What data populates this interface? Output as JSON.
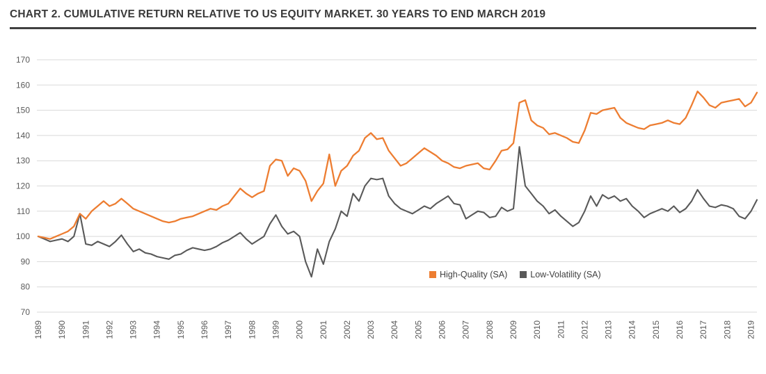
{
  "title": "CHART 2. CUMULATIVE RETURN RELATIVE TO US EQUITY MARKET. 30 YEARS TO END MARCH 2019",
  "colors": {
    "accent_orange": "#ED7D31",
    "line_gray": "#595959",
    "grid": "#D9D9D9",
    "axis_text": "#595959",
    "title_text": "#3A3A3A",
    "title_rule": "#404040"
  },
  "chart_data": {
    "type": "line",
    "title": "CHART 2. CUMULATIVE RETURN RELATIVE TO US EQUITY MARKET. 30 YEARS TO END MARCH 2019",
    "xlabel": "",
    "ylabel": "",
    "ylim": [
      70,
      170
    ],
    "y_ticks": [
      70,
      80,
      90,
      100,
      110,
      120,
      130,
      140,
      150,
      160,
      170
    ],
    "x_tick_labels": [
      "1989",
      "1990",
      "1991",
      "1992",
      "1993",
      "1994",
      "1995",
      "1996",
      "1997",
      "1998",
      "1999",
      "2000",
      "2001",
      "2002",
      "2003",
      "2004",
      "2005",
      "2006",
      "2007",
      "2008",
      "2009",
      "2010",
      "2011",
      "2012",
      "2013",
      "2014",
      "2015",
      "2016",
      "2017",
      "2018",
      "2019"
    ],
    "points_per_year": 4,
    "grid": "horizontal",
    "legend_position": "inside-bottom-center",
    "series": [
      {
        "name": "High-Quality (SA)",
        "color": "#ED7D31",
        "values": [
          100,
          99.5,
          99,
          100,
          101,
          102,
          104,
          109,
          107,
          110,
          112,
          114,
          112,
          113,
          115,
          113,
          111,
          110,
          109,
          108,
          107,
          106,
          105.5,
          106,
          107,
          107.5,
          108,
          109,
          110,
          111,
          110.5,
          112,
          113,
          116,
          119,
          117,
          115.5,
          117,
          118,
          128,
          130.5,
          130,
          124,
          127,
          126,
          122,
          114,
          118,
          121,
          132.5,
          120,
          126,
          128,
          132,
          134,
          139,
          141,
          138.5,
          139,
          134,
          131,
          128,
          129,
          131,
          133,
          135,
          133.5,
          132,
          130,
          129,
          127.5,
          127,
          128,
          128.5,
          129,
          127,
          126.5,
          130,
          134,
          134.5,
          137,
          153,
          154,
          146,
          144,
          143,
          140.5,
          141,
          140,
          139,
          137.5,
          137,
          142,
          149,
          148.5,
          150,
          150.5,
          151,
          147,
          145,
          144,
          143,
          142.5,
          144,
          144.5,
          145,
          146,
          145,
          144.5,
          147,
          152,
          157.5,
          155,
          152,
          151,
          153,
          153.5,
          154,
          154.5,
          151.5,
          153,
          157
        ]
      },
      {
        "name": "Low-Volatility (SA)",
        "color": "#595959",
        "values": [
          100,
          99,
          98,
          98.5,
          99,
          98,
          100,
          109,
          97,
          96.5,
          98,
          97,
          96,
          98,
          100.5,
          97,
          94,
          95,
          93.5,
          93,
          92,
          91.5,
          91,
          92.5,
          93,
          94.5,
          95.5,
          95,
          94.5,
          95,
          96,
          97.5,
          98.5,
          100,
          101.5,
          99,
          97,
          98.5,
          100,
          105,
          108.5,
          104,
          101,
          102,
          100,
          90,
          84,
          95,
          89,
          98,
          103,
          110,
          108,
          117,
          114,
          120,
          123,
          122.5,
          123,
          116,
          113,
          111,
          110,
          109,
          110.5,
          112,
          111,
          113,
          114.5,
          116,
          113,
          112.5,
          107,
          108.5,
          110,
          109.5,
          107.5,
          108,
          111.5,
          110,
          111,
          135.5,
          120,
          117,
          114,
          112,
          109,
          110.5,
          108,
          106,
          104,
          105.5,
          110,
          116,
          112,
          116.5,
          115,
          116,
          114,
          115,
          112,
          110,
          107.5,
          109,
          110,
          111,
          110,
          112,
          109.5,
          111,
          114,
          118.5,
          115,
          112,
          111.5,
          112.5,
          112,
          111,
          108,
          107,
          110,
          114.5
        ]
      }
    ]
  }
}
